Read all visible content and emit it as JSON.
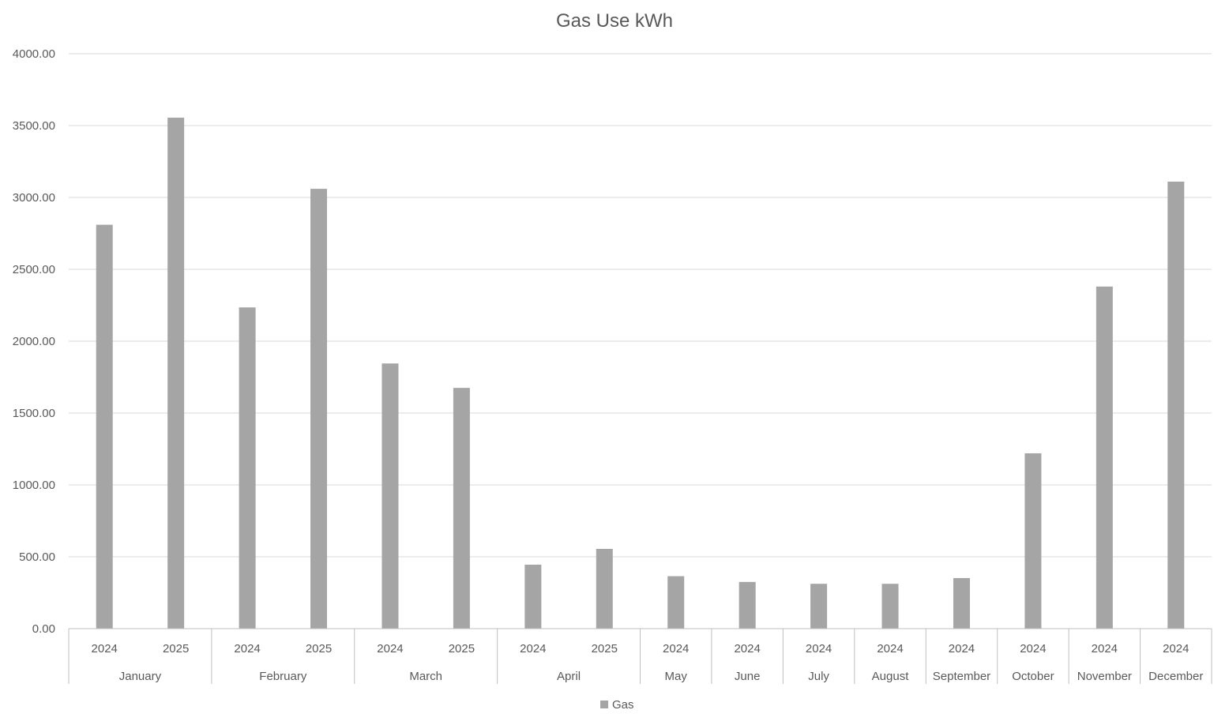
{
  "chart_data": {
    "type": "bar",
    "title": "Gas Use kWh",
    "xlabel": "",
    "ylabel": "",
    "ylim": [
      0,
      4000
    ],
    "yticks": [
      "0.00",
      "500.00",
      "1000.00",
      "1500.00",
      "2000.00",
      "2500.00",
      "3000.00",
      "3500.00",
      "4000.00"
    ],
    "grid": true,
    "legend_position": "bottom",
    "colors": {
      "bar": "#a5a5a5",
      "grid": "#d9d9d9",
      "axis": "#bfbfbf",
      "text": "#595959"
    },
    "groups": [
      {
        "month": "January",
        "points": [
          {
            "year": "2024",
            "value": 2810
          },
          {
            "year": "2025",
            "value": 3555
          }
        ]
      },
      {
        "month": "February",
        "points": [
          {
            "year": "2024",
            "value": 2235
          },
          {
            "year": "2025",
            "value": 3060
          }
        ]
      },
      {
        "month": "March",
        "points": [
          {
            "year": "2024",
            "value": 1845
          },
          {
            "year": "2025",
            "value": 1675
          }
        ]
      },
      {
        "month": "April",
        "points": [
          {
            "year": "2024",
            "value": 445
          },
          {
            "year": "2025",
            "value": 555
          }
        ]
      },
      {
        "month": "May",
        "points": [
          {
            "year": "2024",
            "value": 365
          }
        ]
      },
      {
        "month": "June",
        "points": [
          {
            "year": "2024",
            "value": 325
          }
        ]
      },
      {
        "month": "July",
        "points": [
          {
            "year": "2024",
            "value": 312
          }
        ]
      },
      {
        "month": "August",
        "points": [
          {
            "year": "2024",
            "value": 312
          }
        ]
      },
      {
        "month": "September",
        "points": [
          {
            "year": "2024",
            "value": 352
          }
        ]
      },
      {
        "month": "October",
        "points": [
          {
            "year": "2024",
            "value": 1220
          }
        ]
      },
      {
        "month": "November",
        "points": [
          {
            "year": "2024",
            "value": 2380
          }
        ]
      },
      {
        "month": "December",
        "points": [
          {
            "year": "2024",
            "value": 3110
          }
        ]
      }
    ],
    "series": [
      {
        "name": "Gas"
      }
    ]
  }
}
